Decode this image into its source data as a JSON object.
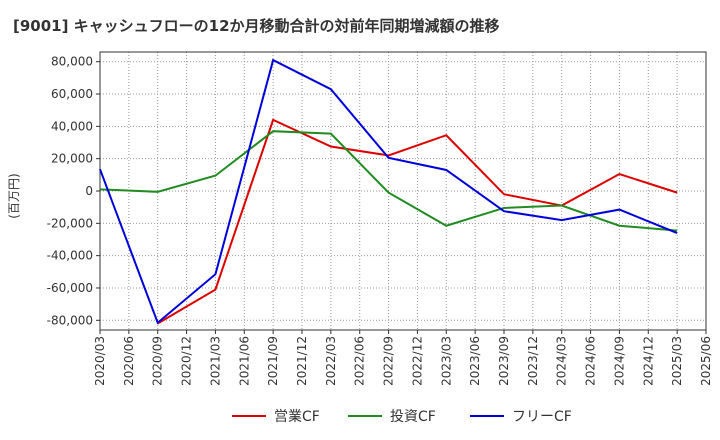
{
  "chart_data": {
    "type": "line",
    "title": "[9001]  キャッシュフローの12か月移動合計の対前年同期増減額の推移",
    "ylabel": "(百万円)",
    "xlabel": "",
    "ylim": [
      -86000,
      86000
    ],
    "y_ticks": [
      80000,
      60000,
      40000,
      20000,
      0,
      -20000,
      -40000,
      -60000,
      -80000
    ],
    "y_tick_labels": [
      "80,000",
      "60,000",
      "40,000",
      "20,000",
      "0",
      "-20,000",
      "-40,000",
      "-60,000",
      "-80,000"
    ],
    "x_tick_labels": [
      "2020/03",
      "2020/06",
      "2020/09",
      "2020/12",
      "2021/03",
      "2021/06",
      "2021/09",
      "2021/12",
      "2022/03",
      "2022/06",
      "2022/09",
      "2022/12",
      "2023/03",
      "2023/06",
      "2023/09",
      "2023/12",
      "2024/03",
      "2024/06",
      "2024/09",
      "2024/12",
      "2025/03",
      "2025/06"
    ],
    "grid": true,
    "legend_position": "bottom",
    "series": [
      {
        "name": "営業CF",
        "color": "#dd0000",
        "points": [
          [
            "2020/09",
            -82000
          ],
          [
            "2021/03",
            -61000
          ],
          [
            "2021/09",
            44000
          ],
          [
            "2022/03",
            27500
          ],
          [
            "2022/09",
            22000
          ],
          [
            "2023/03",
            34500
          ],
          [
            "2023/09",
            -2000
          ],
          [
            "2024/03",
            -9000
          ],
          [
            "2024/09",
            10500
          ],
          [
            "2025/03",
            -1000
          ]
        ]
      },
      {
        "name": "投資CF",
        "color": "#228b22",
        "points": [
          [
            "2020/03",
            1000
          ],
          [
            "2020/09",
            -500
          ],
          [
            "2021/03",
            9500
          ],
          [
            "2021/09",
            37000
          ],
          [
            "2022/03",
            35500
          ],
          [
            "2022/09",
            -1000
          ],
          [
            "2023/03",
            -21500
          ],
          [
            "2023/09",
            -10500
          ],
          [
            "2024/03",
            -9000
          ],
          [
            "2024/09",
            -21500
          ],
          [
            "2025/03",
            -24500
          ]
        ]
      },
      {
        "name": "フリーCF",
        "color": "#0000dd",
        "points": [
          [
            "2020/03",
            13500
          ],
          [
            "2020/09",
            -81500
          ],
          [
            "2021/03",
            -51500
          ],
          [
            "2021/09",
            81000
          ],
          [
            "2022/03",
            63000
          ],
          [
            "2022/09",
            20500
          ],
          [
            "2023/03",
            13000
          ],
          [
            "2023/09",
            -12500
          ],
          [
            "2024/03",
            -18000
          ],
          [
            "2024/09",
            -11500
          ],
          [
            "2025/03",
            -26000
          ]
        ]
      }
    ]
  }
}
